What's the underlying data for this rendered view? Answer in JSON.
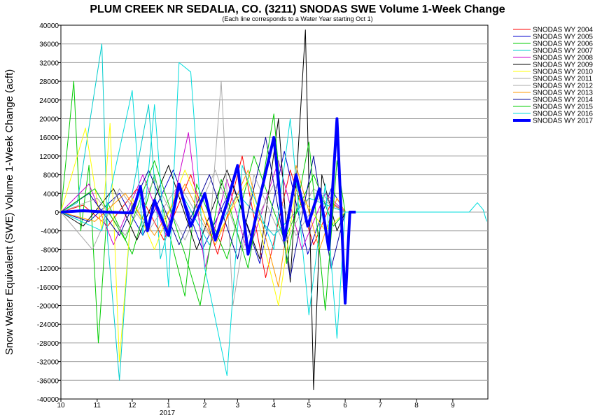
{
  "chart_data": {
    "type": "line",
    "title": "PLUM CREEK NR SEDALIA, CO. (3211) SNODAS SWE Volume 1-Week Change",
    "subtitle": "(Each line corresponds to a Water Year starting Oct 1)",
    "ylabel": "Snow Water Equivalent (SWE) Volume 1-Week Change (acft)",
    "xlabel": "",
    "x_tick_labels": [
      "10",
      "11",
      "12",
      "1",
      "2",
      "3",
      "4",
      "5",
      "6",
      "7",
      "8",
      "9"
    ],
    "x_year_label": "2017",
    "xlim": [
      "Oct 1",
      "Sep 30"
    ],
    "ylim": [
      -40000,
      40000
    ],
    "y_ticks": [
      40000,
      36000,
      32000,
      28000,
      24000,
      20000,
      16000,
      12000,
      8000,
      4000,
      0,
      -4000,
      -8000,
      -12000,
      -16000,
      -20000,
      -24000,
      -28000,
      -32000,
      -36000,
      -40000
    ],
    "grid": "horizontal",
    "legend_position": "right",
    "series": [
      {
        "name": "SNODAS WY 2004",
        "color": "#ff0000",
        "width": 1,
        "points": [
          [
            "Oct 1",
            0
          ],
          [
            "Oct 20",
            1500
          ],
          [
            "Nov 10",
            -3000
          ],
          [
            "Dec 5",
            5000
          ],
          [
            "Dec 28",
            -6000
          ],
          [
            "Jan 20",
            8000
          ],
          [
            "Feb 12",
            -9000
          ],
          [
            "Mar 5",
            12000
          ],
          [
            "Mar 25",
            -14000
          ],
          [
            "Apr 15",
            9000
          ],
          [
            "May 5",
            -7000
          ],
          [
            "May 20",
            2000
          ],
          [
            "Jun 1",
            0
          ]
        ]
      },
      {
        "name": "SNODAS WY 2005",
        "color": "#0000cc",
        "width": 1,
        "points": [
          [
            "Oct 1",
            0
          ],
          [
            "Oct 25",
            -2000
          ],
          [
            "Nov 20",
            4000
          ],
          [
            "Dec 10",
            -5000
          ],
          [
            "Jan 5",
            9000
          ],
          [
            "Jan 30",
            -8000
          ],
          [
            "Feb 25",
            6000
          ],
          [
            "Mar 20",
            -11000
          ],
          [
            "Apr 10",
            13000
          ],
          [
            "Apr 30",
            -9000
          ],
          [
            "May 20",
            5000
          ],
          [
            "Jun 1",
            0
          ]
        ]
      },
      {
        "name": "SNODAS WY 2006",
        "color": "#00cc00",
        "width": 1,
        "points": [
          [
            "Oct 1",
            0
          ],
          [
            "Oct 12",
            28000
          ],
          [
            "Oct 18",
            -4000
          ],
          [
            "Oct 25",
            10000
          ],
          [
            "Nov 2",
            -28000
          ],
          [
            "Nov 10",
            2000
          ],
          [
            "Dec 1",
            -9000
          ],
          [
            "Dec 20",
            8000
          ],
          [
            "Jan 15",
            -18000
          ],
          [
            "Jan 25",
            6000
          ],
          [
            "Feb 20",
            -10000
          ],
          [
            "Mar 15",
            12000
          ],
          [
            "Apr 10",
            -6000
          ],
          [
            "May 5",
            8000
          ],
          [
            "May 22",
            -3000
          ],
          [
            "Jun 1",
            0
          ]
        ]
      },
      {
        "name": "SNODAS WY 2007",
        "color": "#00cccc",
        "width": 1,
        "points": [
          [
            "Oct 1",
            0
          ],
          [
            "Oct 15",
            2000
          ],
          [
            "Nov 5",
            36000
          ],
          [
            "Nov 10",
            -6000
          ],
          [
            "Nov 20",
            -36000
          ],
          [
            "Dec 1",
            4000
          ],
          [
            "Dec 15",
            23000
          ],
          [
            "Dec 25",
            -10000
          ],
          [
            "Jan 10",
            5000
          ],
          [
            "Feb 5",
            -7000
          ],
          [
            "Mar 1",
            4000
          ],
          [
            "Apr 1",
            -5000
          ],
          [
            "May 1",
            3000
          ],
          [
            "Jun 1",
            0
          ]
        ]
      },
      {
        "name": "SNODAS WY 2008",
        "color": "#cc00cc",
        "width": 1,
        "points": [
          [
            "Oct 1",
            0
          ],
          [
            "Oct 25",
            6000
          ],
          [
            "Nov 15",
            -7000
          ],
          [
            "Dec 10",
            8000
          ],
          [
            "Dec 30",
            -5000
          ],
          [
            "Jan 18",
            17000
          ],
          [
            "Feb 1",
            -12000
          ],
          [
            "Feb 20",
            7000
          ],
          [
            "Mar 10",
            -9000
          ],
          [
            "Apr 5",
            11000
          ],
          [
            "Apr 25",
            -8000
          ],
          [
            "May 15",
            4000
          ],
          [
            "Jun 1",
            0
          ]
        ]
      },
      {
        "name": "SNODAS WY 2009",
        "color": "#000000",
        "width": 1,
        "points": [
          [
            "Oct 1",
            0
          ],
          [
            "Oct 20",
            -3000
          ],
          [
            "Nov 15",
            5000
          ],
          [
            "Dec 5",
            -6000
          ],
          [
            "Jan 1",
            10000
          ],
          [
            "Jan 25",
            -8000
          ],
          [
            "Feb 20",
            9000
          ],
          [
            "Mar 20",
            -10000
          ],
          [
            "Apr 5",
            20000
          ],
          [
            "Apr 15",
            -15000
          ],
          [
            "Apr 28",
            39000
          ],
          [
            "May 5",
            -38000
          ],
          [
            "May 12",
            8000
          ],
          [
            "May 25",
            -4000
          ],
          [
            "Jun 1",
            0
          ]
        ]
      },
      {
        "name": "SNODAS WY 2010",
        "color": "#ffff00",
        "width": 1,
        "points": [
          [
            "Oct 1",
            0
          ],
          [
            "Oct 22",
            18000
          ],
          [
            "Nov 5",
            -4000
          ],
          [
            "Nov 12",
            19000
          ],
          [
            "Nov 20",
            -32000
          ],
          [
            "Dec 1",
            3000
          ],
          [
            "Dec 20",
            -8000
          ],
          [
            "Jan 15",
            9000
          ],
          [
            "Feb 10",
            -6000
          ],
          [
            "Mar 10",
            7000
          ],
          [
            "Apr 5",
            -20000
          ],
          [
            "Apr 20",
            5000
          ],
          [
            "May 15",
            -4000
          ],
          [
            "Jun 1",
            0
          ]
        ]
      },
      {
        "name": "SNODAS WY 2011",
        "color": "#aaaaaa",
        "width": 1,
        "points": [
          [
            "Oct 1",
            0
          ],
          [
            "Oct 28",
            -8000
          ],
          [
            "Nov 20",
            5000
          ],
          [
            "Dec 15",
            -4000
          ],
          [
            "Jan 10",
            6000
          ],
          [
            "Feb 5",
            -5000
          ],
          [
            "Feb 15",
            28000
          ],
          [
            "Feb 25",
            -20000
          ],
          [
            "Mar 15",
            8000
          ],
          [
            "Apr 10",
            -7000
          ],
          [
            "May 5",
            5000
          ],
          [
            "Jun 1",
            0
          ]
        ]
      },
      {
        "name": "SNODAS WY 2012",
        "color": "#aaaaaa",
        "width": 1,
        "points": [
          [
            "Oct 1",
            0
          ],
          [
            "Nov 1",
            3000
          ],
          [
            "Nov 25",
            -5000
          ],
          [
            "Dec 20",
            7000
          ],
          [
            "Jan 15",
            -6000
          ],
          [
            "Feb 10",
            9000
          ],
          [
            "Mar 5",
            -8000
          ],
          [
            "Apr 1",
            6000
          ],
          [
            "Apr 20",
            -5000
          ],
          [
            "May 10",
            3000
          ],
          [
            "Jun 1",
            0
          ]
        ]
      },
      {
        "name": "SNODAS WY 2013",
        "color": "#ff9900",
        "width": 1,
        "points": [
          [
            "Oct 1",
            0
          ],
          [
            "Oct 30",
            -2000
          ],
          [
            "Nov 25",
            4000
          ],
          [
            "Dec 20",
            -5000
          ],
          [
            "Jan 15",
            6000
          ],
          [
            "Feb 10",
            -7000
          ],
          [
            "Mar 10",
            9000
          ],
          [
            "Apr 5",
            -16000
          ],
          [
            "Apr 20",
            10000
          ],
          [
            "May 10",
            -8000
          ],
          [
            "May 25",
            3000
          ],
          [
            "Jun 1",
            0
          ]
        ]
      },
      {
        "name": "SNODAS WY 2014",
        "color": "#000099",
        "width": 1,
        "points": [
          [
            "Oct 1",
            0
          ],
          [
            "Oct 25",
            4000
          ],
          [
            "Nov 20",
            -5000
          ],
          [
            "Dec 15",
            9000
          ],
          [
            "Jan 10",
            -7000
          ],
          [
            "Feb 5",
            8000
          ],
          [
            "Mar 1",
            -10000
          ],
          [
            "Mar 25",
            16000
          ],
          [
            "Apr 15",
            -14000
          ],
          [
            "May 5",
            12000
          ],
          [
            "May 20",
            -12000
          ],
          [
            "Jun 1",
            0
          ]
        ]
      },
      {
        "name": "SNODAS WY 2015",
        "color": "#00cc00",
        "width": 1,
        "points": [
          [
            "Oct 1",
            0
          ],
          [
            "Oct 30",
            5000
          ],
          [
            "Nov 25",
            -6000
          ],
          [
            "Dec 20",
            11000
          ],
          [
            "Jan 15",
            -9000
          ],
          [
            "Jan 28",
            -20000
          ],
          [
            "Feb 15",
            7000
          ],
          [
            "Mar 10",
            -12000
          ],
          [
            "Apr 1",
            21000
          ],
          [
            "Apr 12",
            -11000
          ],
          [
            "May 1",
            15000
          ],
          [
            "May 15",
            -21000
          ],
          [
            "May 25",
            11000
          ],
          [
            "Jun 1",
            0
          ]
        ]
      },
      {
        "name": "SNODAS WY 2016",
        "color": "#00dddd",
        "width": 1,
        "points": [
          [
            "Oct 1",
            0
          ],
          [
            "Nov 5",
            -4000
          ],
          [
            "Dec 1",
            26000
          ],
          [
            "Dec 10",
            -5000
          ],
          [
            "Dec 20",
            23000
          ],
          [
            "Jan 1",
            -16000
          ],
          [
            "Jan 10",
            32000
          ],
          [
            "Jan 20",
            30000
          ],
          [
            "Feb 1",
            -12000
          ],
          [
            "Feb 20",
            -35000
          ],
          [
            "Mar 5",
            10000
          ],
          [
            "Apr 1",
            -8000
          ],
          [
            "Apr 15",
            20000
          ],
          [
            "May 1",
            -22000
          ],
          [
            "May 15",
            6000
          ],
          [
            "May 25",
            -27000
          ],
          [
            "Jun 1",
            0
          ],
          [
            "Sep 15",
            0
          ],
          [
            "Sep 22",
            2000
          ],
          [
            "Sep 27",
            500
          ],
          [
            "Sep 30",
            -2000
          ]
        ]
      },
      {
        "name": "SNODAS WY 2017",
        "color": "#0000ff",
        "width": 4,
        "points": [
          [
            "Oct 1",
            0
          ],
          [
            "Oct 20",
            300
          ],
          [
            "Nov 10",
            0
          ],
          [
            "Dec 1",
            -200
          ],
          [
            "Dec 8",
            5500
          ],
          [
            "Dec 14",
            -4000
          ],
          [
            "Dec 20",
            2500
          ],
          [
            "Jan 1",
            -5000
          ],
          [
            "Jan 10",
            6000
          ],
          [
            "Jan 20",
            -3000
          ],
          [
            "Feb 1",
            4000
          ],
          [
            "Feb 10",
            -6000
          ],
          [
            "Feb 20",
            2000
          ],
          [
            "Mar 1",
            10000
          ],
          [
            "Mar 10",
            -9000
          ],
          [
            "Mar 20",
            3000
          ],
          [
            "Apr 1",
            16000
          ],
          [
            "Apr 10",
            -6000
          ],
          [
            "Apr 20",
            8000
          ],
          [
            "Apr 30",
            -3000
          ],
          [
            "May 10",
            5000
          ],
          [
            "May 18",
            -8000
          ],
          [
            "May 25",
            20000
          ],
          [
            "Jun 1",
            -19500
          ],
          [
            "Jun 5",
            0
          ],
          [
            "Jun 10",
            0
          ]
        ]
      }
    ]
  }
}
